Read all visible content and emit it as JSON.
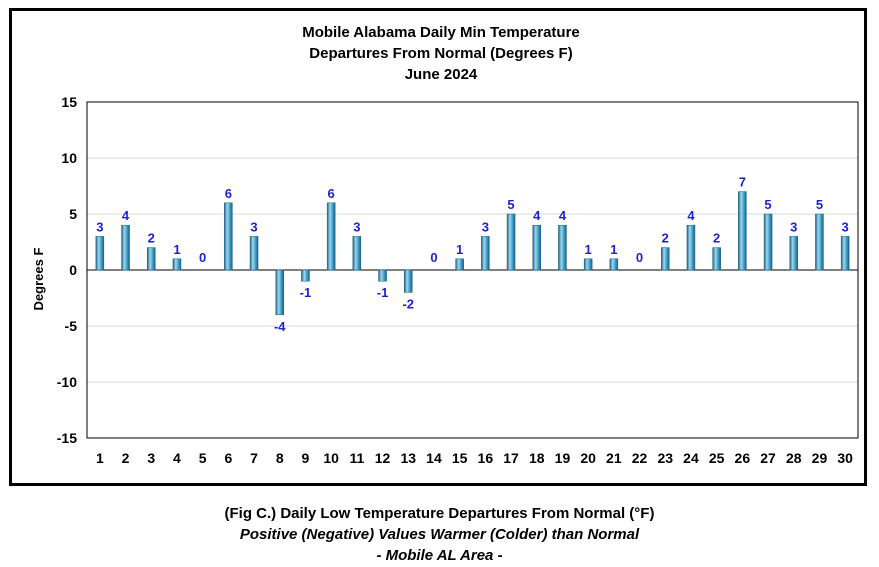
{
  "chart_data": {
    "type": "bar",
    "title_lines": [
      "Mobile Alabama Daily Min Temperature",
      "Departures From Normal (Degrees F)",
      "June 2024"
    ],
    "xlabel": "",
    "ylabel": "Degrees F",
    "ylim": [
      -15,
      15
    ],
    "yticks": [
      15,
      10,
      5,
      0,
      -5,
      -10,
      -15
    ],
    "grid": true,
    "legend": "none",
    "categories": [
      "1",
      "2",
      "3",
      "4",
      "5",
      "6",
      "7",
      "8",
      "9",
      "10",
      "11",
      "12",
      "13",
      "14",
      "15",
      "16",
      "17",
      "18",
      "19",
      "20",
      "21",
      "22",
      "23",
      "24",
      "25",
      "26",
      "27",
      "28",
      "29",
      "30"
    ],
    "series": [
      {
        "values": [
          3,
          4,
          2,
          1,
          0,
          6,
          3,
          -4,
          -1,
          6,
          3,
          -1,
          -2,
          0,
          1,
          3,
          5,
          4,
          4,
          1,
          1,
          0,
          2,
          4,
          2,
          7,
          5,
          3,
          5,
          3
        ],
        "labels": [
          "3",
          "4",
          "2",
          "1",
          "0",
          "6",
          "3",
          "-4",
          "-1",
          "6",
          "3",
          "-1",
          "-2",
          "0",
          "1",
          "3",
          "5",
          "4",
          "4",
          "1",
          "1",
          "0",
          "2",
          "4",
          "2",
          "7",
          "5",
          "3",
          "5",
          "3"
        ]
      }
    ]
  },
  "caption": {
    "title": "(Fig C.) Daily Low Temperature Departures From Normal (°F)",
    "line2": "Positive (Negative) Values Warmer (Colder) than Normal",
    "line3": "- Mobile AL Area -"
  },
  "colors": {
    "bar_light": "#9fd8ee",
    "bar_mid": "#3a9cc8",
    "bar_dark": "#1e5f80",
    "label": "#1f1fcc",
    "grid": "#d9d9d9"
  }
}
